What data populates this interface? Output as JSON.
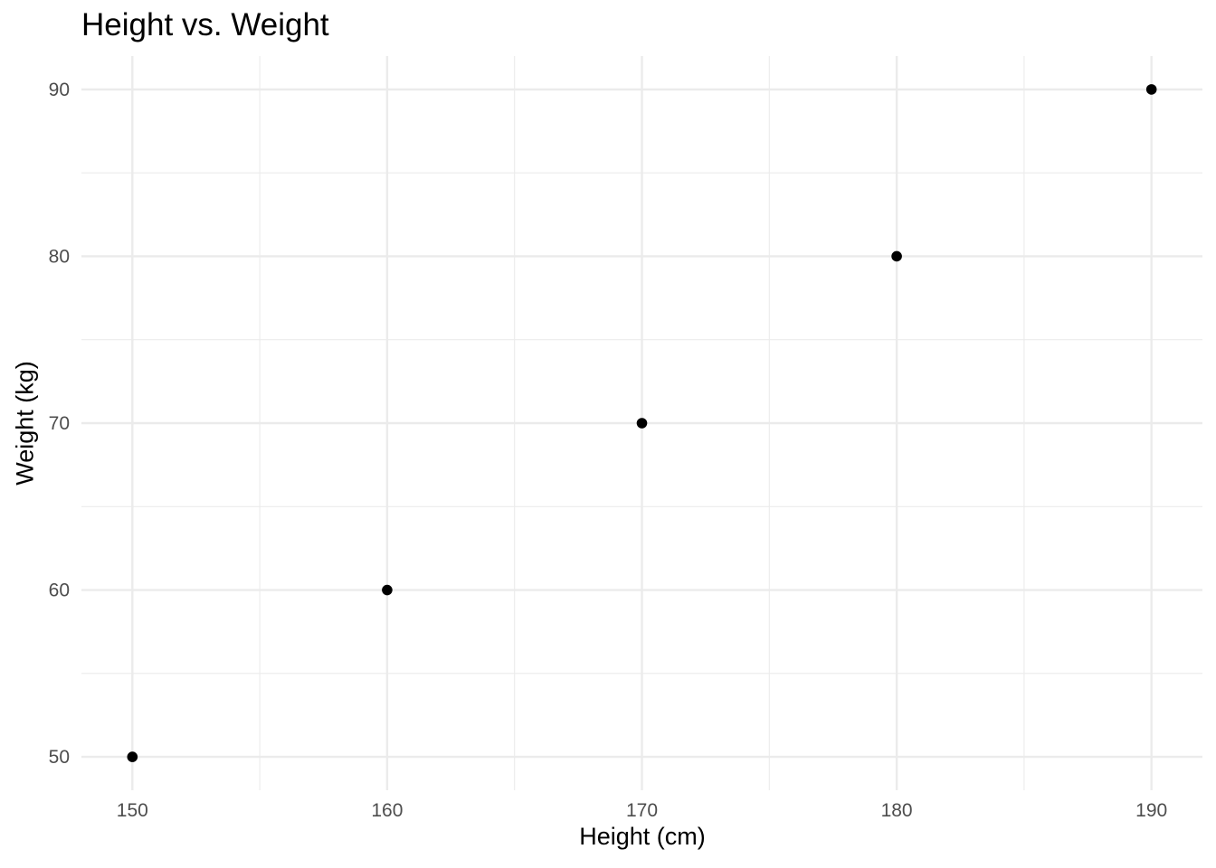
{
  "chart_data": {
    "type": "scatter",
    "title": "Height vs. Weight",
    "xlabel": "Height (cm)",
    "ylabel": "Weight (kg)",
    "x": [
      150,
      160,
      170,
      180,
      190
    ],
    "y": [
      50,
      60,
      70,
      80,
      90
    ],
    "xlim": [
      148,
      192
    ],
    "ylim": [
      48,
      92
    ],
    "x_ticks": [
      150,
      160,
      170,
      180,
      190
    ],
    "y_ticks": [
      50,
      60,
      70,
      80,
      90
    ],
    "x_minor_ticks": [
      155,
      165,
      175,
      185
    ],
    "y_minor_ticks": [
      55,
      65,
      75,
      85
    ],
    "grid": true,
    "legend": "none",
    "point_color": "#000000",
    "grid_color": "#ebebeb",
    "tick_label_color": "#4d4d4d"
  }
}
